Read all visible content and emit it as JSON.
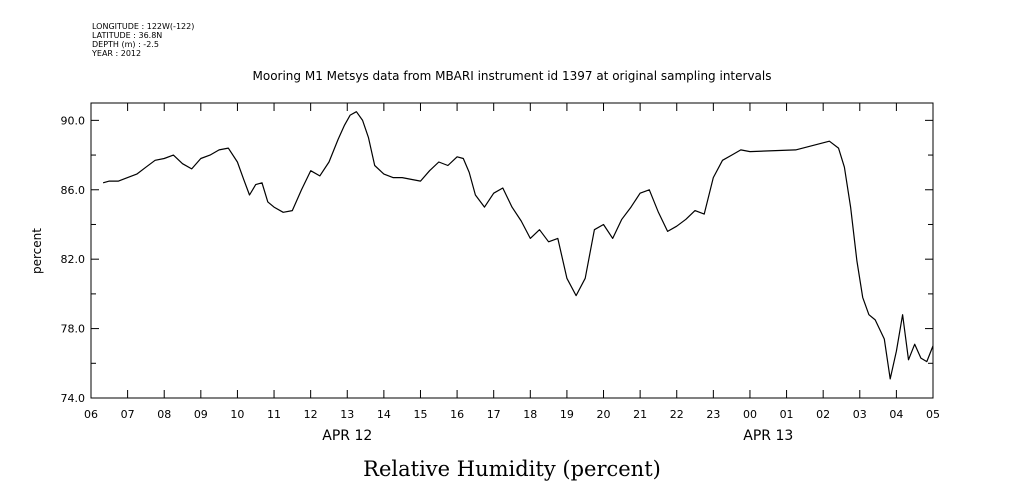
{
  "meta": {
    "longitude": "LONGITUDE : 122W(-122)",
    "latitude": "LATITUDE : 36.8N",
    "depth": "DEPTH (m) : -2.5",
    "year": "YEAR : 2012"
  },
  "chart_data": {
    "type": "line",
    "title": "Mooring M1 Metsys data from MBARI instrument id 1397 at original sampling intervals",
    "xlabel": "Relative Humidity (percent)",
    "ylabel": "percent",
    "xlim": [
      6,
      29
    ],
    "ylim": [
      74,
      91
    ],
    "grid": false,
    "x_tick_labels": [
      "06",
      "07",
      "08",
      "09",
      "10",
      "11",
      "12",
      "13",
      "14",
      "15",
      "16",
      "17",
      "18",
      "19",
      "20",
      "21",
      "22",
      "23",
      "00",
      "01",
      "02",
      "03",
      "04",
      "05"
    ],
    "x_date_labels": [
      {
        "label": "APR 12",
        "hour": 13
      },
      {
        "label": "APR 13",
        "hour": 24.5
      }
    ],
    "y_ticks": [
      74,
      78,
      82,
      86,
      90
    ],
    "y_tick_labels": [
      "74.0",
      "78.0",
      "82.0",
      "86.0",
      "90.0"
    ],
    "series": [
      {
        "x": [
          6.33,
          6.5,
          6.75,
          7.0,
          7.25,
          7.5,
          7.75,
          8.0,
          8.25,
          8.5,
          8.75,
          9.0,
          9.25,
          9.5,
          9.75,
          10.0,
          10.17,
          10.33,
          10.5,
          10.67,
          10.83,
          11.0,
          11.25,
          11.5,
          11.75,
          12.0,
          12.25,
          12.5,
          12.75,
          12.92,
          13.08,
          13.25,
          13.42,
          13.58,
          13.75,
          14.0,
          14.25,
          14.5,
          14.75,
          15.0,
          15.25,
          15.5,
          15.75,
          16.0,
          16.17,
          16.33,
          16.5,
          16.75,
          17.0,
          17.25,
          17.5,
          17.75,
          18.0,
          18.25,
          18.5,
          18.75,
          19.0,
          19.25,
          19.5,
          19.75,
          20.0,
          20.25,
          20.5,
          20.75,
          21.0,
          21.25,
          21.5,
          21.75,
          22.0,
          22.25,
          22.5,
          22.75,
          23.0,
          23.25,
          23.5,
          23.75,
          24.0,
          25.25,
          26.17,
          26.42,
          26.58,
          26.75,
          26.92,
          27.08,
          27.25,
          27.42,
          27.67,
          27.83,
          28.0,
          28.17,
          28.33,
          28.5,
          28.67,
          28.83,
          29.0
        ],
        "values": [
          86.4,
          86.5,
          86.5,
          86.7,
          86.9,
          87.3,
          87.7,
          87.8,
          88.0,
          87.5,
          87.2,
          87.8,
          88.0,
          88.3,
          88.4,
          87.6,
          86.6,
          85.7,
          86.3,
          86.4,
          85.3,
          85.0,
          84.7,
          84.8,
          86.0,
          87.1,
          86.8,
          87.6,
          88.9,
          89.7,
          90.3,
          90.5,
          90.0,
          89.0,
          87.4,
          86.9,
          86.7,
          86.7,
          86.6,
          86.5,
          87.1,
          87.6,
          87.4,
          87.9,
          87.8,
          87.0,
          85.7,
          85.0,
          85.8,
          86.1,
          85.0,
          84.2,
          83.2,
          83.7,
          83.0,
          83.2,
          80.9,
          79.9,
          80.9,
          83.7,
          84.0,
          83.2,
          84.3,
          85.0,
          85.8,
          86.0,
          84.7,
          83.6,
          83.9,
          84.3,
          84.8,
          84.6,
          86.7,
          87.7,
          88.0,
          88.3,
          88.2,
          88.3,
          88.8,
          88.4,
          87.3,
          85.0,
          81.9,
          79.8,
          78.8,
          78.5,
          77.4,
          75.1,
          76.7,
          78.8,
          76.2,
          77.1,
          76.3,
          76.1,
          77.0
        ]
      }
    ]
  }
}
